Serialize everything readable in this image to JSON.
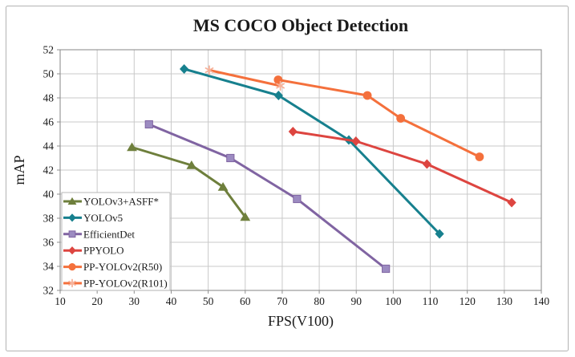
{
  "chart_data": {
    "type": "line",
    "title": "MS COCO Object Detection",
    "xlabel": "FPS(V100)",
    "ylabel": "mAP",
    "xlim": [
      10,
      140
    ],
    "xtick_step": 10,
    "ylim": [
      32,
      52
    ],
    "ytick_step": 2,
    "grid": true,
    "legend_position": "lower-left",
    "colors": {
      "grid": "#c9c9c9",
      "axis": "#8f8f8f",
      "frame": "#b3b3b3",
      "legend_border": "#b9b9b9",
      "background": "#ffffff"
    },
    "series": [
      {
        "name": "YOLOv3+ASFF*",
        "color": "#6e7f3c",
        "marker": "triangle",
        "marker_color": "#6e7f3c",
        "points": [
          [
            29.4,
            43.9
          ],
          [
            45.5,
            42.4
          ],
          [
            54,
            40.6
          ],
          [
            60,
            38.1
          ]
        ]
      },
      {
        "name": "YOLOv5",
        "color": "#17808e",
        "marker": "diamond",
        "marker_color": "#17808e",
        "points": [
          [
            43.5,
            50.4
          ],
          [
            69,
            48.2
          ],
          [
            88,
            44.5
          ],
          [
            112.5,
            36.7
          ]
        ]
      },
      {
        "name": "EfficientDet",
        "color": "#8064a2",
        "marker": "square",
        "marker_color": "#9c8bc1",
        "points": [
          [
            34,
            45.8
          ],
          [
            56,
            43.0
          ],
          [
            74,
            39.6
          ],
          [
            98,
            33.8
          ]
        ]
      },
      {
        "name": "PPYOLO",
        "color": "#dd4540",
        "marker": "diamond",
        "marker_color": "#dd4540",
        "points": [
          [
            72.9,
            45.2
          ],
          [
            89.9,
            44.4
          ],
          [
            109.1,
            42.5
          ],
          [
            132,
            39.3
          ]
        ]
      },
      {
        "name": "PP-YOLOv2(R50)",
        "color": "#f4703c",
        "marker": "circle",
        "marker_color": "#f4703c",
        "points": [
          [
            68.9,
            49.5
          ],
          [
            93,
            48.2
          ],
          [
            102,
            46.3
          ],
          [
            123.3,
            43.1
          ]
        ]
      },
      {
        "name": "PP-YOLOv2(R101)",
        "color": "#f4703c",
        "marker": "asterisk",
        "marker_color": "#f7b29a",
        "points": [
          [
            50.3,
            50.3
          ],
          [
            69.5,
            49.0
          ]
        ]
      }
    ]
  }
}
